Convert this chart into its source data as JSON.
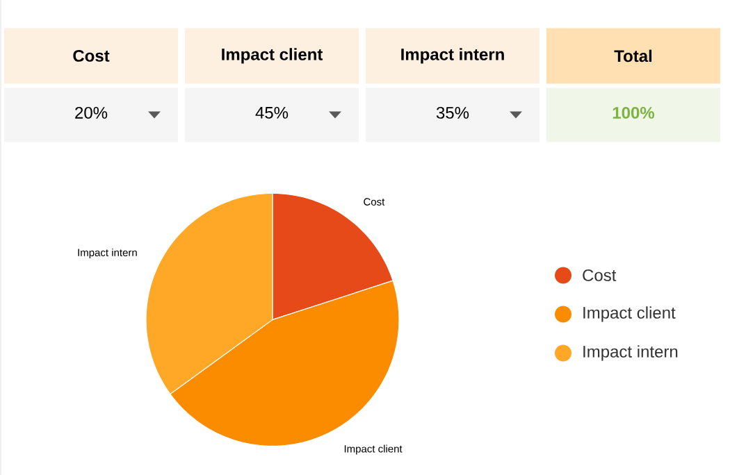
{
  "chart_data": {
    "type": "pie",
    "categories": [
      "Cost",
      "Impact client",
      "Impact intern"
    ],
    "values": [
      20,
      45,
      35
    ],
    "colors": [
      "#e64a19",
      "#fb8c00",
      "#ffa726"
    ],
    "annotations": [
      "20%",
      "45%",
      "35%",
      "Total",
      "100%"
    ],
    "legend": "right"
  }
}
